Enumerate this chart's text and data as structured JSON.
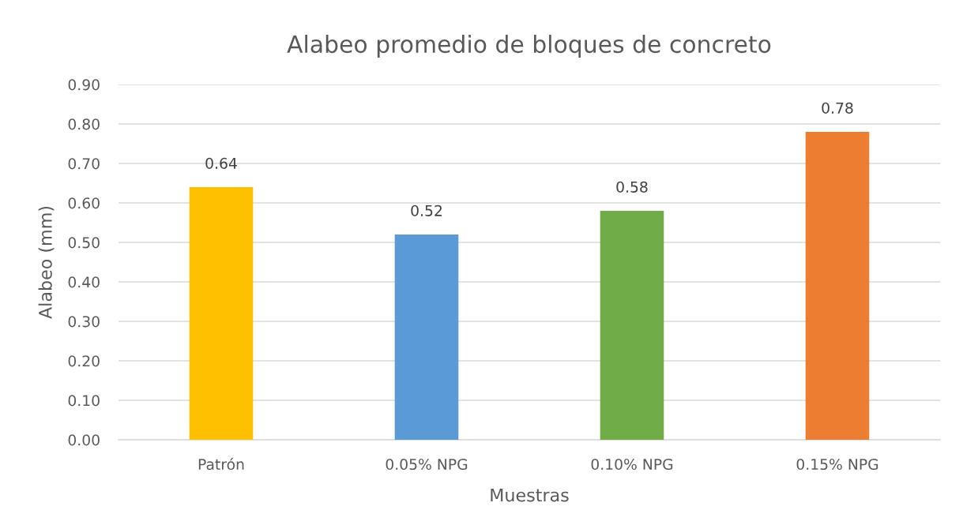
{
  "chart_data": {
    "type": "bar",
    "title": "Alabeo promedio de bloques de concreto",
    "xlabel": "Muestras",
    "ylabel": "Alabeo (mm)",
    "categories": [
      "Patrón",
      "0.05% NPG",
      "0.10% NPG",
      "0.15% NPG"
    ],
    "values": [
      0.64,
      0.52,
      0.58,
      0.78
    ],
    "colors": [
      "#ffc000",
      "#5b9bd5",
      "#70ad47",
      "#ed7d31"
    ],
    "ylim": [
      0,
      0.9
    ],
    "yticks": [
      {
        "value": 0,
        "label": "0.00"
      },
      {
        "value": 0.1,
        "label": "0.10"
      },
      {
        "value": 0.2,
        "label": "0.20"
      },
      {
        "value": 0.3,
        "label": "0.30"
      },
      {
        "value": 0.4,
        "label": "0.40"
      },
      {
        "value": 0.5,
        "label": "0.50"
      },
      {
        "value": 0.6,
        "label": "0.60"
      },
      {
        "value": 0.7,
        "label": "0.70"
      },
      {
        "value": 0.8,
        "label": "0.80"
      },
      {
        "value": 0.9,
        "label": "0.90"
      }
    ],
    "grid": "y",
    "data_labels": true
  }
}
